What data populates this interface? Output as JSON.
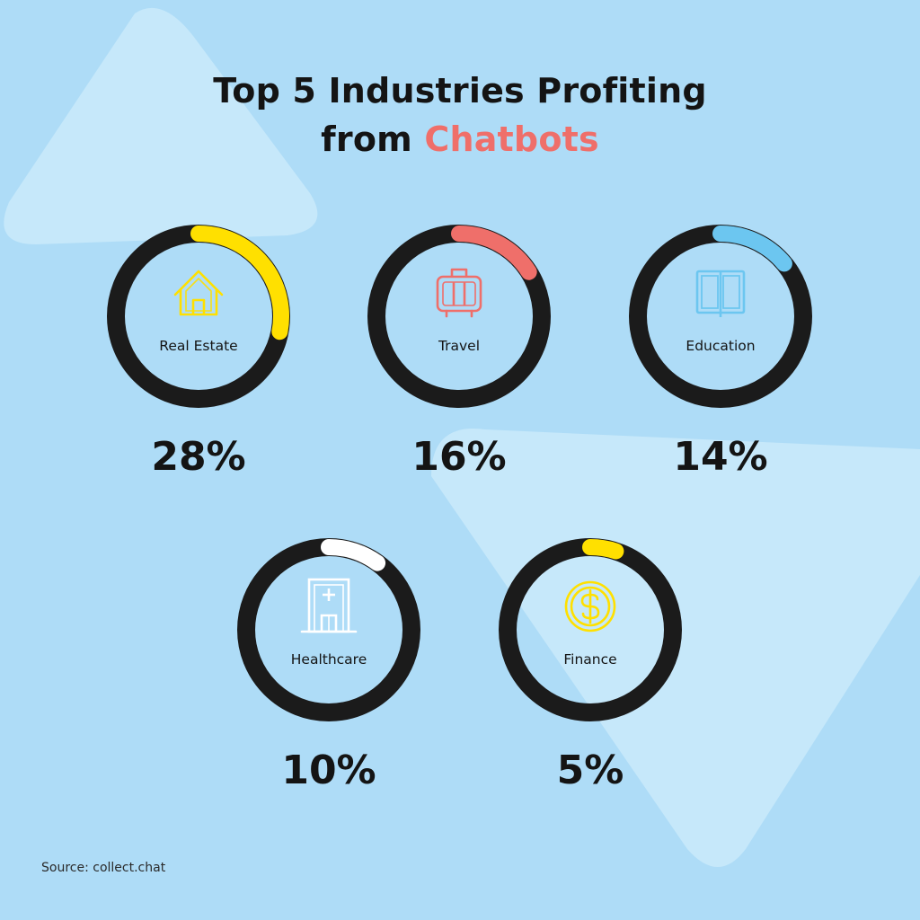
{
  "title": {
    "line1": "Top 5 Industries Profiting",
    "line2_prefix": "from",
    "line2_accent": "Chatbots"
  },
  "colors": {
    "background": "#aedcf7",
    "ring_track": "#1b1b1b",
    "accent_title": "#ef6f6a"
  },
  "chart_data": {
    "type": "pie",
    "title": "Top 5 Industries Profiting from Chatbots",
    "items": [
      {
        "category": "Real Estate",
        "value": 28,
        "label": "28%",
        "color": "#ffe000",
        "icon": "house-icon"
      },
      {
        "category": "Travel",
        "value": 16,
        "label": "16%",
        "color": "#ef6f6a",
        "icon": "suitcase-icon"
      },
      {
        "category": "Education",
        "value": 14,
        "label": "14%",
        "color": "#6cc6f0",
        "icon": "book-icon"
      },
      {
        "category": "Healthcare",
        "value": 10,
        "label": "10%",
        "color": "#ffffff",
        "icon": "hospital-icon"
      },
      {
        "category": "Finance",
        "value": 5,
        "label": "5%",
        "color": "#ffe000",
        "icon": "dollar-coin-icon"
      }
    ]
  },
  "source": "Source: collect.chat"
}
